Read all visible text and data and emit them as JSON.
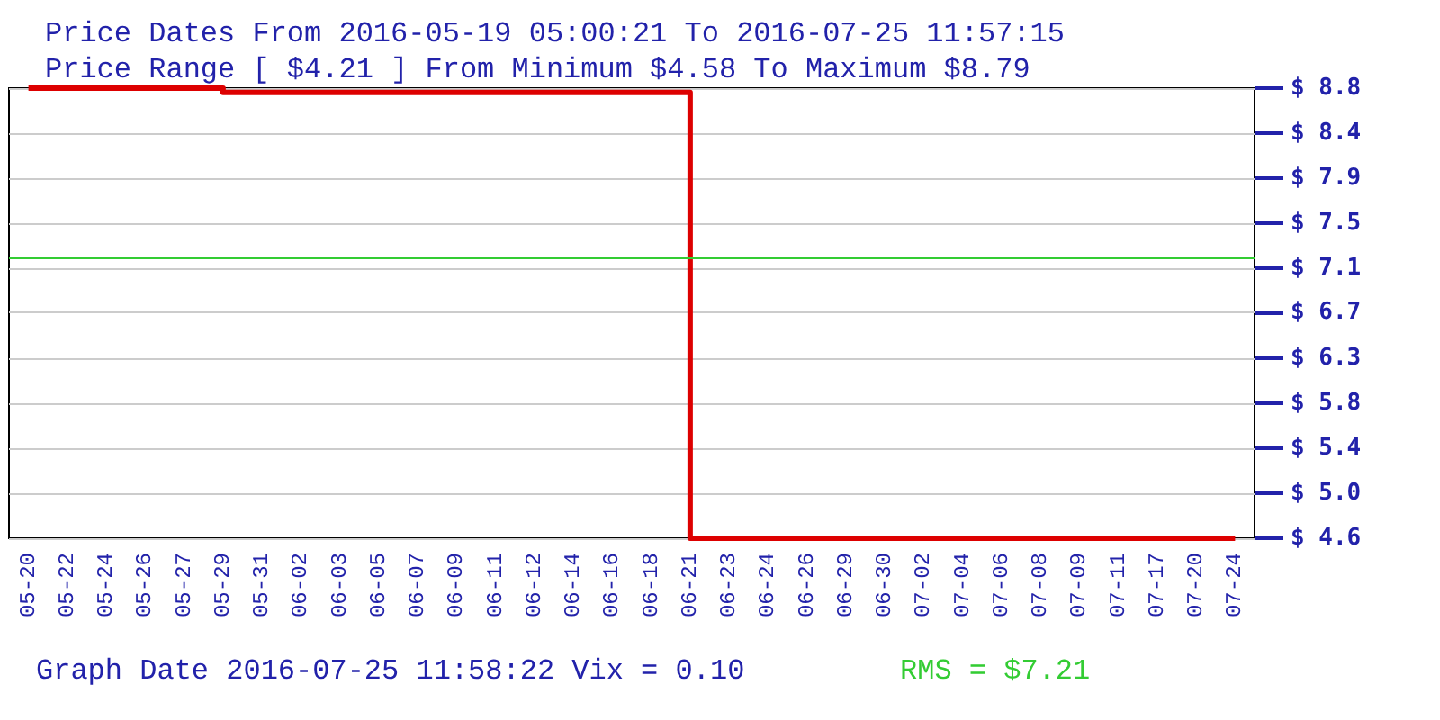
{
  "chart_data": {
    "type": "step",
    "title": "Price Dates From 2016-05-19 05:00:21 To 2016-07-25 11:57:15",
    "subtitle": "Price Range [ $4.21 ] From Minimum $4.58 To Maximum $8.79",
    "annotations": [
      "Graph Date 2016-07-25 11:58:22 Vix = 0.10"
    ],
    "categories": [
      "05-20",
      "05-22",
      "05-24",
      "05-26",
      "05-27",
      "05-29",
      "05-31",
      "06-02",
      "06-03",
      "06-05",
      "06-07",
      "06-09",
      "06-11",
      "06-12",
      "06-14",
      "06-16",
      "06-18",
      "06-21",
      "06-23",
      "06-24",
      "06-26",
      "06-29",
      "06-30",
      "07-02",
      "07-04",
      "07-06",
      "07-08",
      "07-09",
      "07-11",
      "07-17",
      "07-20",
      "07-24"
    ],
    "series": [
      {
        "color": "#dd0000",
        "values": [
          8.79,
          8.79,
          8.79,
          8.79,
          8.79,
          8.75,
          8.75,
          8.75,
          8.75,
          8.75,
          8.75,
          8.75,
          8.75,
          8.75,
          8.75,
          8.75,
          8.75,
          4.58,
          4.58,
          4.58,
          4.58,
          4.58,
          4.58,
          4.58,
          4.58,
          4.58,
          4.58,
          4.58,
          4.58,
          4.58,
          4.58,
          4.58
        ]
      }
    ],
    "ylim": [
      4.58,
      8.79
    ],
    "yticks": [
      {
        "value": 4.58,
        "label": "$ 4.6"
      },
      {
        "value": 5.0,
        "label": "$ 5.0"
      },
      {
        "value": 5.42,
        "label": "$ 5.4"
      },
      {
        "value": 5.84,
        "label": "$ 5.8"
      },
      {
        "value": 6.26,
        "label": "$ 6.3"
      },
      {
        "value": 6.69,
        "label": "$ 6.7"
      },
      {
        "value": 7.11,
        "label": "$ 7.1"
      },
      {
        "value": 7.53,
        "label": "$ 7.5"
      },
      {
        "value": 7.95,
        "label": "$ 7.9"
      },
      {
        "value": 8.37,
        "label": "$ 8.4"
      },
      {
        "value": 8.79,
        "label": "$ 8.8"
      }
    ],
    "ref_lines": [
      {
        "axis": "y",
        "value": 7.21,
        "label": "RMS = $7.21",
        "color": "#33cc33"
      }
    ],
    "grid": "y",
    "marker": "none",
    "line_style": "solid"
  }
}
